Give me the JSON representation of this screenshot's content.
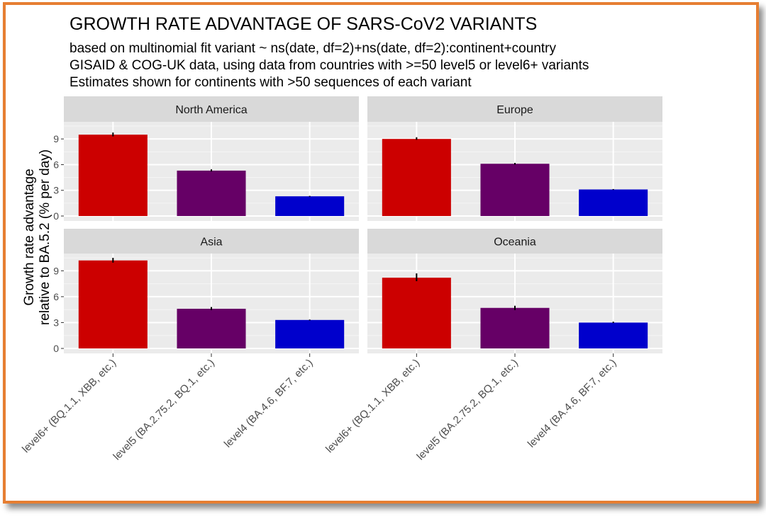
{
  "chart_data": {
    "type": "bar",
    "title": "GROWTH RATE ADVANTAGE OF SARS-CoV2 VARIANTS",
    "subtitle": [
      "based on multinomial fit variant ~ ns(date, df=2)+ns(date, df=2):continent+country",
      "GISAID & COG-UK data, using data from countries with >=50 level5 or level6+ variants",
      "Estimates shown for continents with >50 sequences of each variant"
    ],
    "ylabel": [
      "Growth rate advantage",
      "relative to BA.5.2 (% per day)"
    ],
    "xlabel": "",
    "ylim": [
      0,
      11
    ],
    "yticks": [
      0,
      3,
      6,
      9
    ],
    "grid": true,
    "categories": [
      "level6+ (BQ.1.1, XBB, etc.)",
      "level5 (BA.2.75.2, BQ.1, etc.)",
      "level4 (BA.4.6, BF.7, etc.)"
    ],
    "colors": [
      "#CC0000",
      "#660066",
      "#0000CC"
    ],
    "panels": [
      {
        "name": "North America",
        "values": [
          9.5,
          5.3,
          2.3
        ],
        "err_low": [
          9.3,
          5.2,
          2.25
        ],
        "err_high": [
          9.75,
          5.45,
          2.35
        ]
      },
      {
        "name": "Europe",
        "values": [
          9.0,
          6.1,
          3.1
        ],
        "err_low": [
          8.9,
          6.0,
          3.05
        ],
        "err_high": [
          9.2,
          6.2,
          3.15
        ]
      },
      {
        "name": "Asia",
        "values": [
          10.2,
          4.6,
          3.3
        ],
        "err_low": [
          9.95,
          4.45,
          3.25
        ],
        "err_high": [
          10.5,
          4.8,
          3.35
        ]
      },
      {
        "name": "Oceania",
        "values": [
          8.2,
          4.7,
          3.0
        ],
        "err_low": [
          7.8,
          4.45,
          2.95
        ],
        "err_high": [
          8.7,
          4.95,
          3.1
        ]
      }
    ]
  }
}
